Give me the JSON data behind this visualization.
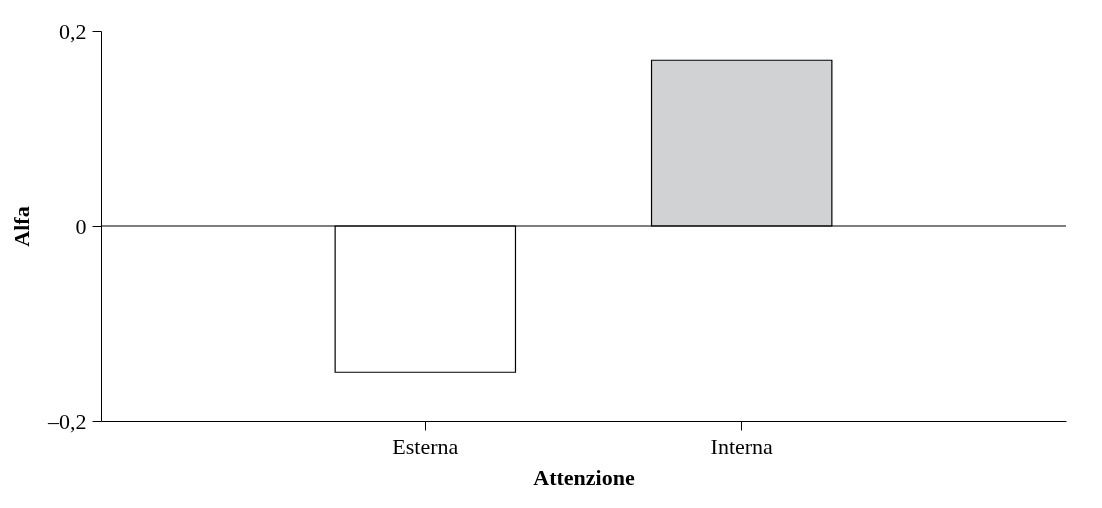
{
  "chart_data": {
    "type": "bar",
    "xlabel": "Attenzione",
    "ylabel": "Alfa",
    "categories": [
      "Esterna",
      "Interna"
    ],
    "values": [
      -0.15,
      0.17
    ],
    "colors": [
      "#ffffff",
      "#d1d2d4"
    ],
    "ylim": [
      -0.2,
      0.2
    ],
    "yticks": [
      {
        "value": -0.2,
        "label": "–0,2"
      },
      0,
      {
        "value": 0.2,
        "label": "0,2"
      }
    ],
    "ref_lines": [
      {
        "axis": "y",
        "value": 0,
        "color": "#000000"
      }
    ],
    "grid": false,
    "legend": false
  }
}
